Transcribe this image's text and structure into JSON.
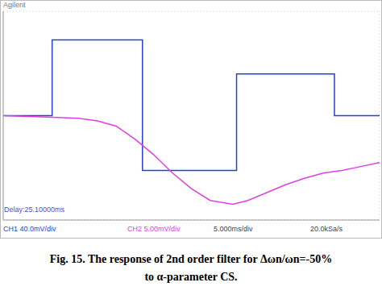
{
  "header": "Agilent",
  "chart_data": {
    "type": "line",
    "xlim": [
      0,
      10
    ],
    "ylim": [
      -4,
      4
    ],
    "xticks": [
      0,
      1,
      2,
      3,
      4,
      5,
      6,
      7,
      8,
      9,
      10
    ],
    "yticks": [
      -4,
      -3,
      -2,
      -1,
      0,
      1,
      2,
      3,
      4
    ],
    "grid": true,
    "tick_labels": false,
    "series": [
      {
        "name": "CH1",
        "color": "#2a3fd0",
        "x": [
          0,
          1.3,
          1.3,
          3.7,
          3.7,
          6.2,
          6.2,
          8.8,
          8.8,
          10
        ],
        "values": [
          0,
          0,
          2.9,
          2.9,
          -2.1,
          -2.1,
          1.6,
          1.6,
          0,
          0
        ]
      },
      {
        "name": "CH2",
        "color": "#e040e0",
        "x": [
          0,
          1,
          2,
          2.5,
          3,
          3.5,
          4,
          4.5,
          5,
          5.5,
          6.1,
          6.5,
          7,
          7.5,
          8,
          8.5,
          9,
          9.5,
          10
        ],
        "values": [
          0,
          -0.05,
          -0.1,
          -0.2,
          -0.4,
          -0.9,
          -1.5,
          -2.2,
          -2.8,
          -3.25,
          -3.4,
          -3.25,
          -2.95,
          -2.65,
          -2.4,
          -2.2,
          -2.1,
          -1.95,
          -1.8
        ]
      }
    ]
  },
  "status": {
    "delay": "Delay:25.10000ms",
    "ch1": "CH1 40.0mV/div",
    "ch2": "CH2 5.00mV/div",
    "timebase": "5.000ms/div",
    "sample_rate": "20.0kSa/s"
  },
  "caption": [
    "Fig. 15. The response of 2nd order filter for Δωn/ωn=-50%",
    "to α-parameter CS."
  ]
}
